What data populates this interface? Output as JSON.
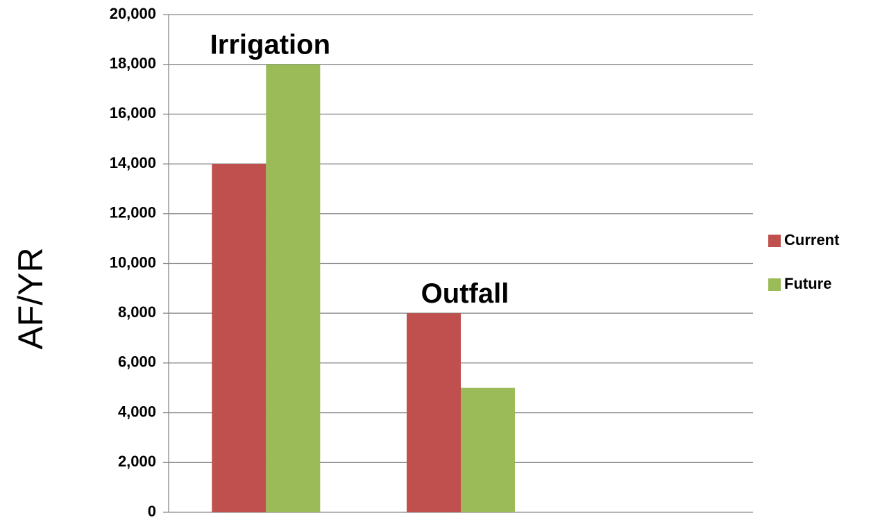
{
  "chart_data": {
    "type": "bar",
    "y_axis_label": "AF/YR",
    "categories": [
      "Irrigation",
      "Outfall",
      null
    ],
    "series": [
      {
        "name": "Current",
        "color": "#c0504d",
        "values": [
          14000,
          8000,
          null
        ]
      },
      {
        "name": "Future",
        "color": "#9bbb59",
        "values": [
          18000,
          5000,
          null
        ]
      }
    ],
    "ylim": [
      0,
      20000
    ],
    "yticks": [
      0,
      {
        "value": 2000,
        "label": "2,000"
      },
      {
        "value": 4000,
        "label": "4,000"
      },
      {
        "value": 6000,
        "label": "6,000"
      },
      {
        "value": 8000,
        "label": "8,000"
      },
      {
        "value": 10000,
        "label": "10,000"
      },
      {
        "value": 12000,
        "label": "12,000"
      },
      {
        "value": 14000,
        "label": "14,000"
      },
      {
        "value": 16000,
        "label": "16,000"
      },
      {
        "value": 18000,
        "label": "18,000"
      },
      {
        "value": 20000,
        "label": "20,000"
      }
    ],
    "grid": true,
    "legend": "right"
  }
}
